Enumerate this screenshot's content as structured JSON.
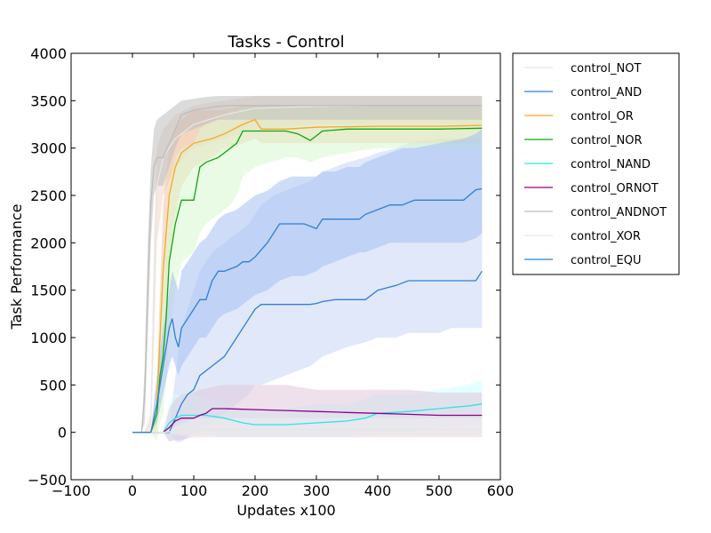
{
  "chart_data": {
    "type": "line",
    "title": "Tasks - Control",
    "xlabel": "Updates x100",
    "ylabel": "Task Performance",
    "xlim": [
      -100,
      600
    ],
    "ylim": [
      -500,
      4000
    ],
    "xticks": [
      -100,
      0,
      100,
      200,
      300,
      400,
      500,
      600
    ],
    "xtick_labels": [
      "−100",
      "0",
      "100",
      "200",
      "300",
      "400",
      "500",
      "600"
    ],
    "yticks": [
      -500,
      0,
      500,
      1000,
      1500,
      2000,
      2500,
      3000,
      3500,
      4000
    ],
    "ytick_labels": [
      "−500",
      "0",
      "500",
      "1000",
      "1500",
      "2000",
      "2500",
      "3000",
      "3500",
      "4000"
    ],
    "grid": false,
    "legend_position": "outside-right",
    "series": [
      {
        "name": "control_NOT",
        "color": "#e6e6e6",
        "x": [
          0,
          20,
          30,
          35,
          40,
          50,
          70,
          100,
          150,
          200,
          300,
          400,
          500,
          570
        ],
        "y": [
          0,
          0,
          100,
          1500,
          2600,
          2900,
          3100,
          3250,
          3350,
          3420,
          3440,
          3450,
          3450,
          3450
        ],
        "band_lower": [
          0,
          0,
          0,
          900,
          2000,
          2500,
          2800,
          3000,
          3100,
          3200,
          3250,
          3250,
          3250,
          3250
        ],
        "band_upper": [
          0,
          0,
          200,
          2000,
          3000,
          3200,
          3350,
          3450,
          3500,
          3550,
          3550,
          3550,
          3550,
          3550
        ],
        "band_color": "#f0d6c6"
      },
      {
        "name": "control_AND",
        "color": "#2f7fd8",
        "x": [
          0,
          60,
          70,
          80,
          90,
          100,
          110,
          130,
          150,
          170,
          190,
          200,
          210,
          230,
          250,
          270,
          290,
          300,
          310,
          330,
          350,
          380,
          400,
          430,
          450,
          500,
          520,
          540,
          560,
          570
        ],
        "y": [
          0,
          0,
          150,
          300,
          400,
          450,
          600,
          700,
          800,
          1000,
          1200,
          1300,
          1350,
          1350,
          1350,
          1350,
          1350,
          1360,
          1380,
          1400,
          1400,
          1400,
          1500,
          1550,
          1600,
          1600,
          1600,
          1600,
          1600,
          1700
        ],
        "band_lower": [
          0,
          0,
          -100,
          -100,
          -50,
          0,
          50,
          100,
          200,
          300,
          400,
          500,
          500,
          550,
          600,
          650,
          700,
          750,
          800,
          850,
          900,
          950,
          1000,
          1000,
          1050,
          1050,
          1100,
          1100,
          1100,
          1100
        ],
        "band_upper": [
          0,
          0,
          600,
          1100,
          1300,
          1500,
          1700,
          1900,
          2000,
          2100,
          2200,
          2300,
          2400,
          2500,
          2550,
          2600,
          2650,
          2700,
          2750,
          2800,
          2850,
          2900,
          2950,
          3000,
          3050,
          3100,
          3100,
          3100,
          3100,
          3100
        ],
        "band_color": "#c8d5f5"
      },
      {
        "name": "control_OR",
        "color": "#f7a823",
        "x": [
          0,
          30,
          40,
          50,
          60,
          70,
          80,
          90,
          100,
          130,
          150,
          180,
          200,
          210,
          250,
          300,
          400,
          500,
          570
        ],
        "y": [
          0,
          0,
          300,
          1700,
          2500,
          2800,
          2950,
          3000,
          3050,
          3100,
          3150,
          3250,
          3300,
          3200,
          3200,
          3220,
          3230,
          3230,
          3240
        ],
        "band_lower": [
          0,
          0,
          0,
          900,
          1800,
          2300,
          2600,
          2700,
          2800,
          2900,
          3000,
          3050,
          3100,
          3050,
          3050,
          3050,
          3050,
          3050,
          3050
        ],
        "band_upper": [
          0,
          0,
          600,
          2400,
          3000,
          3200,
          3300,
          3350,
          3400,
          3400,
          3400,
          3450,
          3450,
          3450,
          3450,
          3450,
          3450,
          3450,
          3450
        ],
        "band_color": "#f2c4a6"
      },
      {
        "name": "control_NOR",
        "color": "#0ba80b",
        "x": [
          0,
          30,
          40,
          45,
          50,
          55,
          60,
          70,
          80,
          100,
          110,
          120,
          140,
          160,
          170,
          180,
          200,
          250,
          270,
          290,
          310,
          350,
          400,
          500,
          570
        ],
        "y": [
          0,
          0,
          200,
          600,
          800,
          1200,
          1800,
          2200,
          2450,
          2450,
          2800,
          2850,
          2900,
          3000,
          3050,
          3180,
          3180,
          3180,
          3150,
          3080,
          3180,
          3200,
          3200,
          3200,
          3210
        ],
        "band_lower": [
          0,
          0,
          -100,
          100,
          200,
          500,
          1000,
          1500,
          1800,
          1900,
          2100,
          2200,
          2300,
          2400,
          2500,
          2700,
          2800,
          2900,
          2900,
          2850,
          2900,
          2950,
          3000,
          3000,
          3000
        ],
        "band_upper": [
          0,
          0,
          500,
          1200,
          1600,
          2200,
          2600,
          2900,
          3000,
          3050,
          3200,
          3250,
          3300,
          3400,
          3400,
          3430,
          3430,
          3430,
          3430,
          3430,
          3430,
          3430,
          3430,
          3430,
          3430
        ],
        "band_color": "#d8f8d0"
      },
      {
        "name": "control_NAND",
        "color": "#28e6e6",
        "x": [
          0,
          50,
          60,
          70,
          80,
          100,
          120,
          150,
          180,
          200,
          250,
          300,
          350,
          380,
          400,
          450,
          500,
          550,
          570
        ],
        "y": [
          0,
          0,
          100,
          150,
          180,
          180,
          180,
          150,
          100,
          80,
          80,
          100,
          120,
          150,
          200,
          220,
          250,
          280,
          300
        ],
        "band_lower": [
          0,
          0,
          -100,
          -50,
          0,
          0,
          0,
          -50,
          -50,
          -50,
          -50,
          -50,
          -50,
          0,
          0,
          0,
          50,
          100,
          100
        ],
        "band_upper": [
          0,
          0,
          300,
          400,
          400,
          400,
          350,
          300,
          250,
          250,
          250,
          300,
          300,
          350,
          400,
          400,
          450,
          500,
          550
        ],
        "band_color": "#ccffff"
      },
      {
        "name": "control_ORNOT",
        "color": "#8b008b",
        "x": [
          0,
          50,
          60,
          70,
          80,
          100,
          110,
          120,
          130,
          150,
          200,
          250,
          300,
          350,
          400,
          450,
          500,
          550,
          570
        ],
        "y": [
          0,
          0,
          50,
          120,
          150,
          150,
          180,
          200,
          250,
          250,
          240,
          230,
          220,
          210,
          200,
          190,
          180,
          180,
          180
        ],
        "band_lower": [
          0,
          0,
          -100,
          -80,
          -80,
          -50,
          -50,
          -50,
          -50,
          -50,
          -50,
          -50,
          -50,
          -50,
          -50,
          -50,
          -50,
          -50,
          -50
        ],
        "band_upper": [
          0,
          0,
          250,
          350,
          400,
          420,
          450,
          460,
          480,
          500,
          500,
          500,
          450,
          450,
          450,
          450,
          420,
          420,
          420
        ],
        "band_color": "#e0c8dc"
      },
      {
        "name": "control_ANDNOT",
        "color": "#bdbdbd",
        "x": [
          0,
          15,
          20,
          25,
          30,
          35,
          40,
          50,
          60,
          70,
          80,
          100,
          120,
          140,
          160,
          200,
          300,
          400,
          500,
          570
        ],
        "y": [
          0,
          0,
          400,
          1500,
          2400,
          2800,
          2900,
          2900,
          3050,
          3200,
          3350,
          3400,
          3420,
          3440,
          3450,
          3450,
          3450,
          3450,
          3450,
          3450
        ],
        "band_lower": [
          0,
          0,
          100,
          1000,
          2000,
          2500,
          2600,
          2600,
          2800,
          3000,
          3150,
          3200,
          3250,
          3300,
          3300,
          3300,
          3300,
          3300,
          3300,
          3300
        ],
        "band_upper": [
          0,
          0,
          700,
          2000,
          2800,
          3200,
          3300,
          3350,
          3400,
          3450,
          3500,
          3520,
          3540,
          3550,
          3550,
          3550,
          3550,
          3550,
          3550,
          3550
        ],
        "band_color": "#bdbdbd"
      },
      {
        "name": "control_XOR",
        "color": "#e6e6e6",
        "x": [
          0,
          50,
          100,
          150,
          200,
          300,
          400,
          500,
          570
        ],
        "y": [
          0,
          0,
          30,
          30,
          30,
          30,
          30,
          30,
          30
        ],
        "band_lower": [
          0,
          0,
          -50,
          -50,
          -50,
          -50,
          -50,
          -50,
          -50
        ],
        "band_upper": [
          0,
          0,
          150,
          150,
          150,
          150,
          150,
          150,
          150
        ],
        "band_color": "#eeeeee"
      },
      {
        "name": "control_EQU",
        "color": "#2f7fd8",
        "x": [
          0,
          30,
          40,
          50,
          60,
          65,
          70,
          75,
          80,
          90,
          100,
          110,
          120,
          130,
          140,
          150,
          170,
          180,
          190,
          200,
          220,
          240,
          260,
          280,
          300,
          310,
          330,
          350,
          370,
          380,
          400,
          420,
          440,
          460,
          500,
          540,
          560,
          570
        ],
        "y": [
          0,
          0,
          300,
          700,
          1100,
          1200,
          1000,
          900,
          1100,
          1200,
          1300,
          1400,
          1400,
          1600,
          1700,
          1700,
          1750,
          1800,
          1800,
          1850,
          2000,
          2200,
          2200,
          2200,
          2150,
          2250,
          2250,
          2250,
          2250,
          2300,
          2350,
          2400,
          2400,
          2450,
          2450,
          2450,
          2560,
          2570
        ],
        "band_lower": [
          0,
          0,
          100,
          400,
          700,
          800,
          700,
          600,
          700,
          800,
          900,
          1000,
          1000,
          1100,
          1200,
          1250,
          1300,
          1350,
          1400,
          1450,
          1500,
          1600,
          1650,
          1650,
          1700,
          1750,
          1800,
          1850,
          1900,
          1900,
          1950,
          2000,
          2000,
          2000,
          2000,
          2000,
          2050,
          2100
        ],
        "band_upper": [
          0,
          0,
          600,
          1100,
          1500,
          1700,
          1600,
          1500,
          1700,
          1800,
          1900,
          2000,
          2050,
          2150,
          2250,
          2300,
          2350,
          2400,
          2450,
          2500,
          2550,
          2650,
          2700,
          2700,
          2700,
          2750,
          2750,
          2800,
          2800,
          2850,
          2900,
          2950,
          3000,
          3000,
          3050,
          3100,
          3150,
          3200
        ],
        "band_color": "#a6bff0"
      }
    ]
  }
}
